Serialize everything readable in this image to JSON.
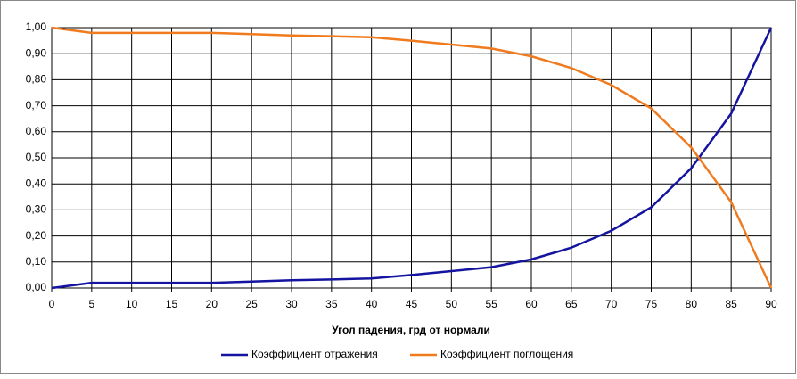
{
  "chart_data": {
    "type": "line",
    "x_label": "Угол падения, грд от нормали",
    "x": [
      0,
      5,
      10,
      15,
      20,
      25,
      30,
      35,
      40,
      45,
      50,
      55,
      60,
      65,
      70,
      75,
      80,
      85,
      90
    ],
    "series": [
      {
        "name": "Коэффициент отражения",
        "color": "#1414a0",
        "values": [
          0.0,
          0.02,
          0.02,
          0.02,
          0.02,
          0.025,
          0.03,
          0.033,
          0.037,
          0.05,
          0.065,
          0.08,
          0.11,
          0.155,
          0.22,
          0.31,
          0.46,
          0.67,
          1.0
        ]
      },
      {
        "name": "Коэффициент поглощения",
        "color": "#f07a1e",
        "values": [
          1.0,
          0.98,
          0.98,
          0.98,
          0.98,
          0.975,
          0.97,
          0.967,
          0.963,
          0.95,
          0.935,
          0.92,
          0.89,
          0.845,
          0.78,
          0.69,
          0.54,
          0.33,
          0.0
        ]
      }
    ],
    "xlim": [
      0,
      90
    ],
    "xticks": [
      0,
      5,
      10,
      15,
      20,
      25,
      30,
      35,
      40,
      45,
      50,
      55,
      60,
      65,
      70,
      75,
      80,
      85,
      90
    ],
    "ylim": [
      0,
      1
    ],
    "yticks": [
      {
        "value": 0,
        "label": "0,00"
      },
      {
        "value": 0.1,
        "label": "0,10"
      },
      {
        "value": 0.2,
        "label": "0,20"
      },
      {
        "value": 0.3,
        "label": "0,30"
      },
      {
        "value": 0.4,
        "label": "0,40"
      },
      {
        "value": 0.5,
        "label": "0,50"
      },
      {
        "value": 0.6,
        "label": "0,60"
      },
      {
        "value": 0.7,
        "label": "0,70"
      },
      {
        "value": 0.8,
        "label": "0,80"
      },
      {
        "value": 0.9,
        "label": "0,90"
      },
      {
        "value": 1,
        "label": "1,00"
      }
    ],
    "grid": true,
    "legend": "bottom"
  }
}
